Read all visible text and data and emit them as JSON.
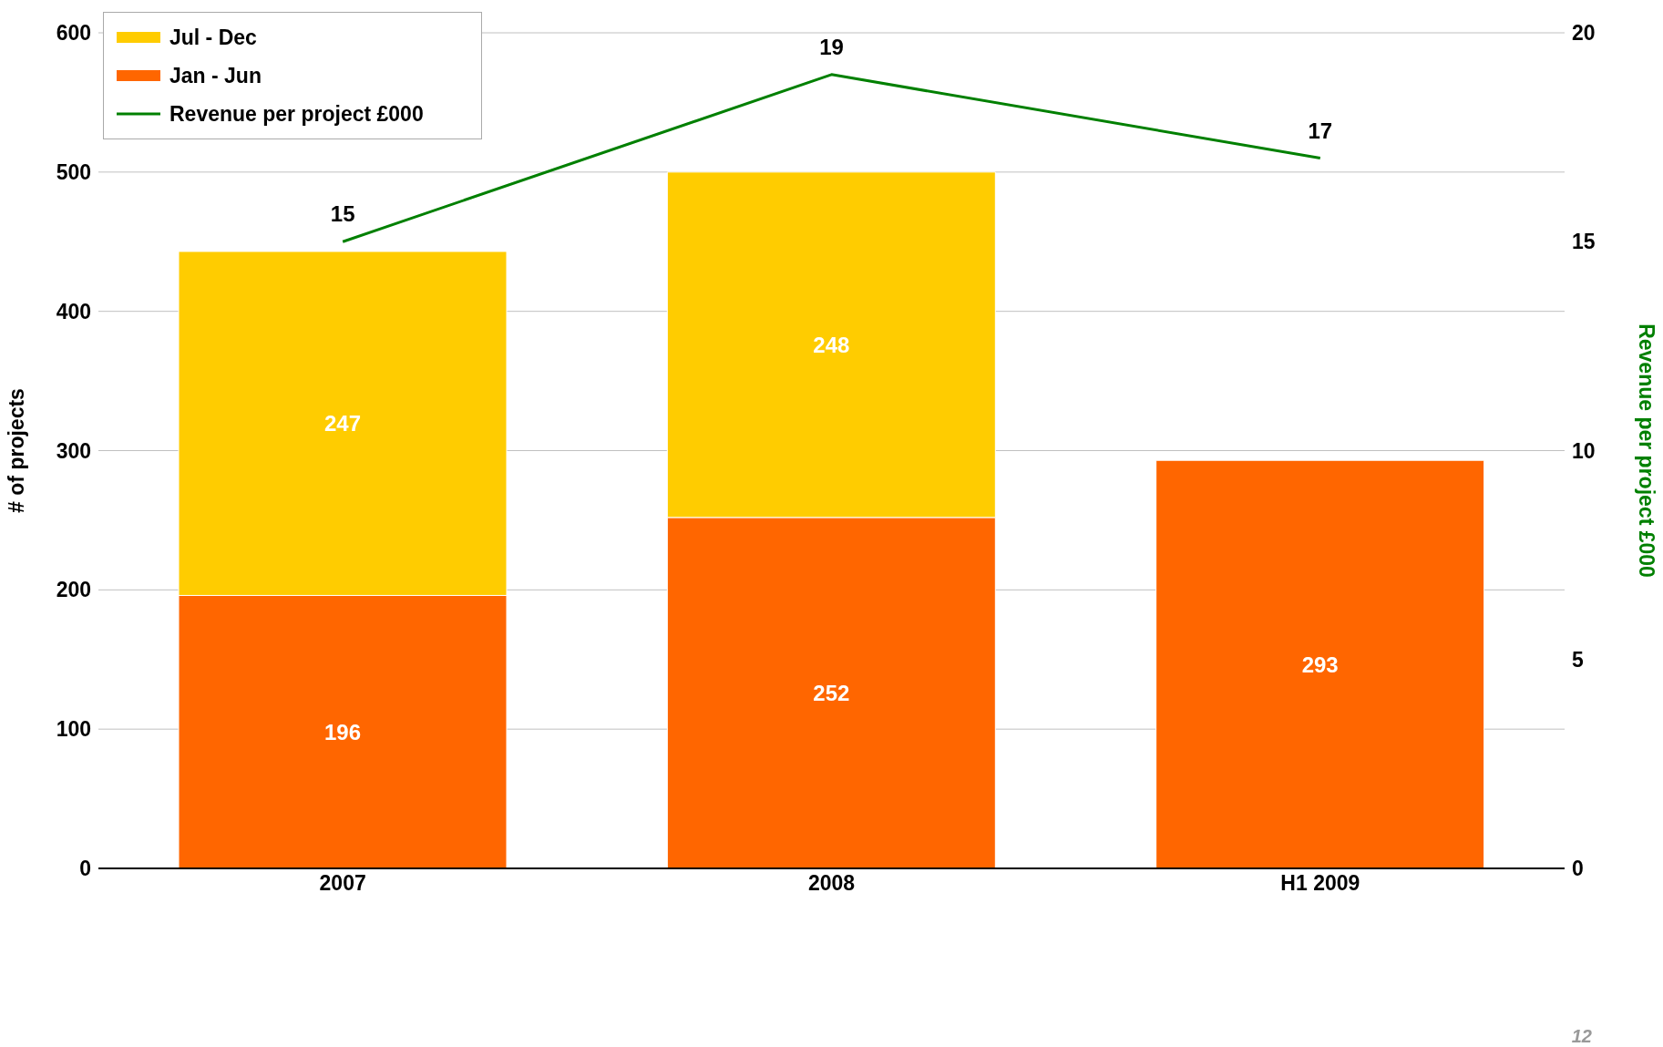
{
  "chart_data": {
    "type": "bar",
    "categories": [
      "2007",
      "2008",
      "H1 2009"
    ],
    "stacked": true,
    "series": [
      {
        "name": "Jan - Jun",
        "color": "#ff6600",
        "values": [
          196,
          252,
          293
        ]
      },
      {
        "name": "Jul - Dec",
        "color": "#ffcc00",
        "values": [
          247,
          248,
          null
        ]
      },
      {
        "name": "Revenue per project £000",
        "type": "line",
        "axis": "y2",
        "color": "#008000",
        "values": [
          15,
          19,
          17
        ]
      }
    ],
    "ylabel": "# of projects",
    "y2label": "Revenue per project £000",
    "ylim": [
      0,
      600
    ],
    "yticks": [
      0,
      100,
      200,
      300,
      400,
      500,
      600
    ],
    "y2lim": [
      0,
      20
    ],
    "y2ticks": [
      0,
      5,
      10,
      15,
      20
    ],
    "grid": "y",
    "legend": "top left",
    "marker": "none",
    "line_style": "solid",
    "data_labels": true,
    "annotations": [
      "12"
    ]
  }
}
